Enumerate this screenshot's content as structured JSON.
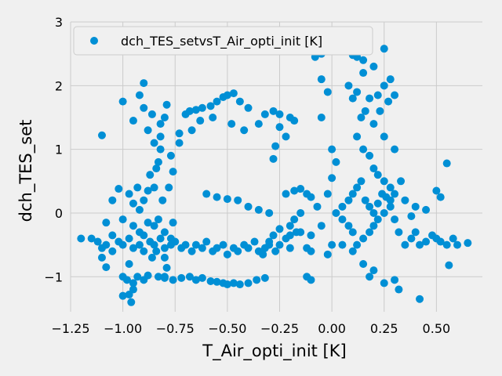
{
  "chart_data": {
    "type": "scatter",
    "xlabel": "T_Air_opti_init [K]",
    "ylabel": "dch_TES_set",
    "xlim": [
      -1.25,
      0.72
    ],
    "ylim": [
      -1.55,
      3.0
    ],
    "x_ticks": [
      -1.25,
      -1.0,
      -0.75,
      -0.5,
      -0.25,
      0.0,
      0.25,
      0.5
    ],
    "x_tick_labels": [
      "−1.25",
      "−1.00",
      "−0.75",
      "−0.50",
      "−0.25",
      "0.00",
      "0.25",
      "0.50"
    ],
    "y_ticks": [
      -1,
      0,
      1,
      2,
      3
    ],
    "y_tick_labels": [
      "−1",
      "0",
      "1",
      "2",
      "3"
    ],
    "grid": true,
    "legend_position": "top",
    "marker_color": "#008fd5",
    "series": [
      {
        "name": "dch_TES_setvsT_Air_opti_init [K]",
        "points": [
          [
            -1.2,
            -0.4
          ],
          [
            -1.15,
            -0.4
          ],
          [
            -1.12,
            -0.45
          ],
          [
            -1.1,
            -0.55
          ],
          [
            -1.08,
            -0.5
          ],
          [
            -1.05,
            -0.6
          ],
          [
            -1.02,
            -0.45
          ],
          [
            -1.0,
            -0.5
          ],
          [
            -0.97,
            -0.4
          ],
          [
            -0.95,
            -0.55
          ],
          [
            -0.92,
            -0.5
          ],
          [
            -0.9,
            -0.6
          ],
          [
            -0.87,
            -0.45
          ],
          [
            -0.85,
            -0.5
          ],
          [
            -0.8,
            -0.55
          ],
          [
            -0.77,
            -0.5
          ],
          [
            -0.75,
            -0.45
          ],
          [
            -0.72,
            -0.55
          ],
          [
            -0.7,
            -0.5
          ],
          [
            -0.67,
            -0.6
          ],
          [
            -0.65,
            -0.5
          ],
          [
            -0.62,
            -0.55
          ],
          [
            -0.6,
            -0.45
          ],
          [
            -0.57,
            -0.6
          ],
          [
            -0.55,
            -0.55
          ],
          [
            -0.52,
            -0.5
          ],
          [
            -0.5,
            -0.65
          ],
          [
            -0.47,
            -0.55
          ],
          [
            -0.45,
            -0.6
          ],
          [
            -0.42,
            -0.5
          ],
          [
            -0.4,
            -0.55
          ],
          [
            -0.37,
            -0.45
          ],
          [
            -0.35,
            -0.6
          ],
          [
            -0.32,
            -0.55
          ],
          [
            -0.3,
            -0.45
          ],
          [
            -0.27,
            -0.6
          ],
          [
            -0.25,
            -0.5
          ],
          [
            -0.22,
            -0.4
          ],
          [
            -0.2,
            -0.35
          ],
          [
            -0.17,
            -0.3
          ],
          [
            -0.12,
            -1.0
          ],
          [
            -0.1,
            -1.05
          ],
          [
            -1.1,
            -0.7
          ],
          [
            -1.08,
            -0.85
          ],
          [
            -1.1,
            1.22
          ],
          [
            -1.02,
            0.38
          ],
          [
            -0.97,
            0.3
          ],
          [
            -0.95,
            0.15
          ],
          [
            -0.92,
            0.05
          ],
          [
            -0.9,
            0.2
          ],
          [
            -0.88,
            0.35
          ],
          [
            -0.85,
            0.4
          ],
          [
            -0.87,
            0.6
          ],
          [
            -0.83,
            0.8
          ],
          [
            -0.82,
            1.0
          ],
          [
            -0.82,
            1.2
          ],
          [
            -0.8,
            1.5
          ],
          [
            -0.79,
            1.7
          ],
          [
            -0.82,
            1.4
          ],
          [
            -0.84,
            0.7
          ],
          [
            -0.81,
            0.2
          ],
          [
            -0.83,
            -0.1
          ],
          [
            -0.8,
            -0.3
          ],
          [
            -0.82,
            -0.4
          ],
          [
            -0.85,
            -0.2
          ],
          [
            -0.84,
            -0.6
          ],
          [
            -0.8,
            -0.7
          ],
          [
            -0.79,
            -0.86
          ],
          [
            -0.8,
            -1.0
          ],
          [
            -0.77,
            -0.4
          ],
          [
            -0.76,
            -0.15
          ],
          [
            -0.78,
            0.4
          ],
          [
            -0.76,
            0.65
          ],
          [
            -0.77,
            0.9
          ],
          [
            -0.73,
            1.1
          ],
          [
            -0.9,
            2.04
          ],
          [
            -0.92,
            1.85
          ],
          [
            -0.9,
            1.65
          ],
          [
            -0.88,
            1.3
          ],
          [
            -0.86,
            1.55
          ],
          [
            -0.85,
            1.1
          ],
          [
            -0.95,
            1.45
          ],
          [
            -1.0,
            1.75
          ],
          [
            -1.05,
            0.2
          ],
          [
            -1.0,
            -0.1
          ],
          [
            -0.95,
            -0.2
          ],
          [
            -0.92,
            -0.3
          ],
          [
            -0.97,
            -0.8
          ],
          [
            -1.0,
            -1.0
          ],
          [
            -0.98,
            -1.05
          ],
          [
            -0.95,
            -1.1
          ],
          [
            -0.93,
            -1.0
          ],
          [
            -0.9,
            -1.05
          ],
          [
            -0.88,
            -0.98
          ],
          [
            -0.83,
            -1.0
          ],
          [
            -0.8,
            -1.02
          ],
          [
            -0.76,
            -1.05
          ],
          [
            -0.72,
            -1.02
          ],
          [
            -0.68,
            -1.0
          ],
          [
            -0.65,
            -1.05
          ],
          [
            -0.62,
            -1.02
          ],
          [
            -0.58,
            -1.07
          ],
          [
            -0.55,
            -1.08
          ],
          [
            -0.52,
            -1.1
          ],
          [
            -0.5,
            -1.12
          ],
          [
            -0.47,
            -1.1
          ],
          [
            -0.44,
            -1.12
          ],
          [
            -0.4,
            -1.1
          ],
          [
            -0.36,
            -1.05
          ],
          [
            -0.32,
            -1.02
          ],
          [
            -1.0,
            -1.3
          ],
          [
            -0.97,
            -1.28
          ],
          [
            -0.95,
            -1.2
          ],
          [
            -0.96,
            -1.4
          ],
          [
            -0.7,
            1.55
          ],
          [
            -0.68,
            1.6
          ],
          [
            -0.65,
            1.62
          ],
          [
            -0.62,
            1.65
          ],
          [
            -0.58,
            1.68
          ],
          [
            -0.55,
            1.75
          ],
          [
            -0.52,
            1.82
          ],
          [
            -0.5,
            1.85
          ],
          [
            -0.47,
            1.88
          ],
          [
            -0.44,
            1.75
          ],
          [
            -0.4,
            1.65
          ],
          [
            -0.35,
            1.4
          ],
          [
            -0.32,
            1.55
          ],
          [
            -0.28,
            1.6
          ],
          [
            -0.25,
            1.55
          ],
          [
            -0.2,
            1.5
          ],
          [
            -0.18,
            1.45
          ],
          [
            -0.25,
            1.35
          ],
          [
            -0.22,
            1.2
          ],
          [
            -0.27,
            1.05
          ],
          [
            -0.28,
            0.85
          ],
          [
            -0.57,
            1.5
          ],
          [
            -0.63,
            1.45
          ],
          [
            -0.67,
            1.3
          ],
          [
            -0.73,
            1.25
          ],
          [
            -0.48,
            1.4
          ],
          [
            -0.42,
            1.3
          ],
          [
            -0.22,
            0.3
          ],
          [
            -0.18,
            0.35
          ],
          [
            -0.15,
            0.38
          ],
          [
            -0.12,
            0.3
          ],
          [
            -0.1,
            0.25
          ],
          [
            -0.15,
            0.0
          ],
          [
            -0.18,
            -0.1
          ],
          [
            -0.2,
            -0.2
          ],
          [
            -0.25,
            -0.25
          ],
          [
            -0.28,
            -0.35
          ],
          [
            -0.3,
            -0.5
          ],
          [
            -0.33,
            -0.65
          ],
          [
            -0.2,
            -0.55
          ],
          [
            -0.15,
            -0.3
          ],
          [
            -0.1,
            -0.35
          ],
          [
            -0.05,
            -0.2
          ],
          [
            -0.07,
            0.1
          ],
          [
            -0.02,
            0.3
          ],
          [
            0.0,
            0.55
          ],
          [
            0.02,
            0.8
          ],
          [
            0.0,
            1.0
          ],
          [
            -0.05,
            1.5
          ],
          [
            -0.02,
            1.9
          ],
          [
            -0.05,
            2.1
          ],
          [
            -0.08,
            2.45
          ],
          [
            -0.05,
            2.5
          ],
          [
            -0.1,
            2.6
          ],
          [
            -0.06,
            2.82
          ],
          [
            -0.03,
            2.75
          ],
          [
            0.0,
            2.75
          ],
          [
            0.02,
            2.72
          ],
          [
            0.05,
            2.6
          ],
          [
            0.08,
            2.55
          ],
          [
            0.1,
            2.48
          ],
          [
            0.12,
            2.45
          ],
          [
            0.15,
            2.4
          ],
          [
            0.2,
            2.3
          ],
          [
            0.25,
            2.58
          ],
          [
            0.28,
            2.1
          ],
          [
            0.25,
            2.0
          ],
          [
            0.22,
            1.85
          ],
          [
            0.18,
            1.8
          ],
          [
            0.16,
            1.6
          ],
          [
            0.14,
            1.5
          ],
          [
            0.12,
            1.2
          ],
          [
            0.15,
            1.0
          ],
          [
            0.18,
            0.9
          ],
          [
            0.2,
            0.7
          ],
          [
            0.22,
            0.6
          ],
          [
            0.25,
            0.5
          ],
          [
            0.28,
            0.4
          ],
          [
            0.3,
            0.3
          ],
          [
            0.28,
            0.1
          ],
          [
            0.25,
            0.0
          ],
          [
            0.22,
            -0.1
          ],
          [
            0.2,
            -0.2
          ],
          [
            0.18,
            -0.3
          ],
          [
            0.15,
            -0.4
          ],
          [
            0.12,
            -0.5
          ],
          [
            0.1,
            -0.3
          ],
          [
            0.08,
            -0.2
          ],
          [
            0.05,
            -0.1
          ],
          [
            0.02,
            0.0
          ],
          [
            0.05,
            0.1
          ],
          [
            0.08,
            0.2
          ],
          [
            0.1,
            0.3
          ],
          [
            0.12,
            0.4
          ],
          [
            0.14,
            0.5
          ],
          [
            0.16,
            0.2
          ],
          [
            0.18,
            0.1
          ],
          [
            0.2,
            0.0
          ],
          [
            0.22,
            0.15
          ],
          [
            0.24,
            0.3
          ],
          [
            0.26,
            0.25
          ],
          [
            0.28,
            0.2
          ],
          [
            0.3,
            -0.1
          ],
          [
            0.32,
            -0.3
          ],
          [
            0.35,
            -0.5
          ],
          [
            0.38,
            -0.4
          ],
          [
            0.4,
            -0.3
          ],
          [
            0.42,
            -0.5
          ],
          [
            0.45,
            -0.45
          ],
          [
            0.48,
            -0.35
          ],
          [
            0.5,
            -0.4
          ],
          [
            0.52,
            -0.45
          ],
          [
            0.55,
            -0.5
          ],
          [
            0.58,
            -0.4
          ],
          [
            0.6,
            -0.5
          ],
          [
            0.55,
            0.78
          ],
          [
            0.5,
            0.35
          ],
          [
            0.52,
            0.25
          ],
          [
            0.56,
            -0.82
          ],
          [
            0.42,
            -1.35
          ],
          [
            0.65,
            -0.47
          ],
          [
            0.2,
            -0.9
          ],
          [
            0.25,
            -1.1
          ],
          [
            0.3,
            -1.05
          ],
          [
            0.32,
            -1.2
          ],
          [
            0.18,
            -1.0
          ],
          [
            0.15,
            -0.8
          ],
          [
            0.3,
            1.0
          ],
          [
            0.25,
            1.2
          ],
          [
            0.2,
            1.4
          ],
          [
            0.23,
            1.6
          ],
          [
            0.27,
            1.75
          ],
          [
            0.3,
            1.85
          ],
          [
            0.1,
            1.8
          ],
          [
            0.12,
            1.9
          ],
          [
            0.08,
            2.0
          ],
          [
            0.15,
            2.2
          ],
          [
            0.35,
            0.2
          ],
          [
            0.33,
            0.5
          ],
          [
            0.4,
            0.1
          ],
          [
            0.38,
            -0.05
          ],
          [
            0.45,
            0.05
          ],
          [
            0.0,
            -0.5
          ],
          [
            -0.02,
            -0.65
          ],
          [
            0.05,
            -0.5
          ],
          [
            0.1,
            -0.6
          ],
          [
            -0.6,
            0.3
          ],
          [
            -0.55,
            0.25
          ],
          [
            -0.5,
            0.22
          ],
          [
            -0.45,
            0.2
          ],
          [
            -0.4,
            0.1
          ],
          [
            -0.35,
            0.05
          ],
          [
            -0.3,
            0.0
          ],
          [
            -1.05,
            -0.35
          ],
          [
            -1.08,
            -0.15
          ],
          [
            -0.93,
            0.4
          ],
          [
            -0.88,
            -0.15
          ],
          [
            -0.86,
            -0.7
          ],
          [
            -0.9,
            -0.35
          ],
          [
            -0.1,
            -0.6
          ],
          [
            -0.12,
            -0.55
          ]
        ]
      }
    ]
  }
}
